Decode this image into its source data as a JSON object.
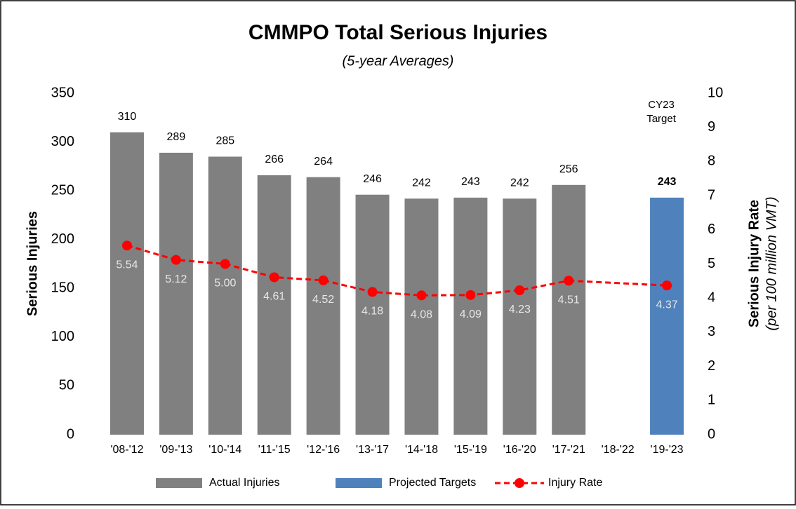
{
  "chart_data": {
    "type": "bar",
    "title": "CMMPO Total Serious Injuries",
    "subtitle": "(5-year Averages)",
    "y_label": "Serious Injuries",
    "y2_label": [
      "Serious Injury Rate",
      "(per 100 million VMT)"
    ],
    "annotation": [
      "CY23",
      "Target"
    ],
    "categories": [
      "'08-'12",
      "'09-'13",
      "'10-'14",
      "'11-'15",
      "'12-'16",
      "'13-'17",
      "'14-'18",
      "'15-'19",
      "'16-'20",
      "'17-'21",
      "'18-'22",
      "'19-'23"
    ],
    "series": [
      {
        "name": "Actual Injuries",
        "type": "bar",
        "color": "#808080",
        "values": [
          310,
          289,
          285,
          266,
          264,
          246,
          242,
          243,
          242,
          256,
          null,
          null
        ]
      },
      {
        "name": "Projected Targets",
        "type": "bar",
        "color": "#4f81bd",
        "values": [
          null,
          null,
          null,
          null,
          null,
          null,
          null,
          null,
          null,
          null,
          null,
          243
        ]
      },
      {
        "name": "Injury Rate",
        "type": "line",
        "axis": "y2",
        "color": "#ff0000",
        "dashed": true,
        "connect_gaps": true,
        "values": [
          5.54,
          5.12,
          5.0,
          4.61,
          4.52,
          4.18,
          4.08,
          4.09,
          4.23,
          4.51,
          null,
          4.37
        ],
        "value_labels": [
          "5.54",
          "5.12",
          "5.00",
          "4.61",
          "4.52",
          "4.18",
          "4.08",
          "4.09",
          "4.23",
          "4.51",
          null,
          "4.37"
        ]
      }
    ],
    "ylim": [
      0,
      350
    ],
    "yticks": [
      0,
      50,
      100,
      150,
      200,
      250,
      300,
      350
    ],
    "y2lim": [
      0,
      10
    ],
    "y2ticks": [
      0,
      1,
      2,
      3,
      4,
      5,
      6,
      7,
      8,
      9,
      10
    ],
    "legend": "bottom"
  }
}
